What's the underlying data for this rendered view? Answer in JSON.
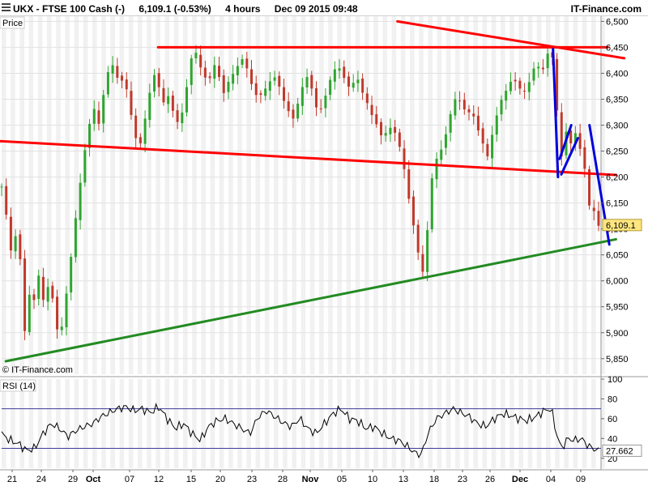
{
  "header": {
    "symbol": "UKX - FTSE 100 Cash (-)",
    "quote": "6,109.1 (-0.53%)",
    "interval": "4 hours",
    "datetime": "Dec 09 2015 09:48",
    "brand": "IT-Finance.com"
  },
  "colors": {
    "up_candle": "#2fa52f",
    "down_candle": "#c0392b",
    "red_trendline": "#ff0000",
    "blue_trendline": "#0000dd",
    "green_trendline": "#228b22",
    "rsi_line": "#000000",
    "rsi_band": "#3b3b9a",
    "price_tag_bg": "#ffe680"
  },
  "chart_data": [
    {
      "type": "candlestick",
      "panel_label": "Price",
      "watermark": "© IT-Finance.com",
      "last_price_label": "6,109.1",
      "ylim": [
        5820,
        6510
      ],
      "yticks": [
        "6,500",
        "6,450",
        "6,400",
        "6,350",
        "6,300",
        "6,250",
        "6,200",
        "6,150",
        "6,100",
        "6,050",
        "6,000",
        "5,950",
        "5,900",
        "5,850"
      ],
      "ytick_values": [
        6500,
        6450,
        6400,
        6350,
        6300,
        6250,
        6200,
        6150,
        6100,
        6050,
        6000,
        5950,
        5900,
        5850
      ],
      "x_labels": [
        "21",
        "24",
        "29",
        "Oct",
        "07",
        "12",
        "15",
        "20",
        "23",
        "28",
        "Nov",
        "05",
        "10",
        "13",
        "18",
        "23",
        "26",
        "Dec",
        "04",
        "09"
      ],
      "close_anchors": [
        {
          "t": 0,
          "v": 6180
        },
        {
          "t": 6,
          "v": 6120
        },
        {
          "t": 12,
          "v": 6050
        },
        {
          "t": 18,
          "v": 6100
        },
        {
          "t": 24,
          "v": 6020
        },
        {
          "t": 28,
          "v": 5900
        },
        {
          "t": 34,
          "v": 5980
        },
        {
          "t": 40,
          "v": 5960
        },
        {
          "t": 46,
          "v": 6020
        },
        {
          "t": 52,
          "v": 5940
        },
        {
          "t": 58,
          "v": 6020
        },
        {
          "t": 64,
          "v": 5930
        },
        {
          "t": 70,
          "v": 5880
        },
        {
          "t": 76,
          "v": 5950
        },
        {
          "t": 82,
          "v": 6020
        },
        {
          "t": 88,
          "v": 6100
        },
        {
          "t": 94,
          "v": 6180
        },
        {
          "t": 100,
          "v": 6250
        },
        {
          "t": 106,
          "v": 6300
        },
        {
          "t": 112,
          "v": 6330
        },
        {
          "t": 118,
          "v": 6300
        },
        {
          "t": 124,
          "v": 6370
        },
        {
          "t": 130,
          "v": 6410
        },
        {
          "t": 136,
          "v": 6420
        },
        {
          "t": 142,
          "v": 6380
        },
        {
          "t": 148,
          "v": 6390
        },
        {
          "t": 154,
          "v": 6340
        },
        {
          "t": 160,
          "v": 6290
        },
        {
          "t": 166,
          "v": 6250
        },
        {
          "t": 172,
          "v": 6300
        },
        {
          "t": 178,
          "v": 6360
        },
        {
          "t": 184,
          "v": 6400
        },
        {
          "t": 190,
          "v": 6370
        },
        {
          "t": 196,
          "v": 6340
        },
        {
          "t": 202,
          "v": 6360
        },
        {
          "t": 208,
          "v": 6320
        },
        {
          "t": 214,
          "v": 6300
        },
        {
          "t": 220,
          "v": 6340
        },
        {
          "t": 226,
          "v": 6400
        },
        {
          "t": 232,
          "v": 6450
        },
        {
          "t": 238,
          "v": 6420
        },
        {
          "t": 244,
          "v": 6400
        },
        {
          "t": 250,
          "v": 6380
        },
        {
          "t": 256,
          "v": 6420
        },
        {
          "t": 262,
          "v": 6400
        },
        {
          "t": 268,
          "v": 6360
        },
        {
          "t": 274,
          "v": 6380
        },
        {
          "t": 280,
          "v": 6400
        },
        {
          "t": 286,
          "v": 6420
        },
        {
          "t": 292,
          "v": 6430
        },
        {
          "t": 298,
          "v": 6400
        },
        {
          "t": 304,
          "v": 6370
        },
        {
          "t": 310,
          "v": 6350
        },
        {
          "t": 316,
          "v": 6360
        },
        {
          "t": 322,
          "v": 6380
        },
        {
          "t": 328,
          "v": 6400
        },
        {
          "t": 334,
          "v": 6380
        },
        {
          "t": 340,
          "v": 6350
        },
        {
          "t": 346,
          "v": 6330
        },
        {
          "t": 352,
          "v": 6310
        },
        {
          "t": 358,
          "v": 6340
        },
        {
          "t": 364,
          "v": 6380
        },
        {
          "t": 370,
          "v": 6400
        },
        {
          "t": 376,
          "v": 6360
        },
        {
          "t": 382,
          "v": 6320
        },
        {
          "t": 388,
          "v": 6340
        },
        {
          "t": 394,
          "v": 6370
        },
        {
          "t": 400,
          "v": 6400
        },
        {
          "t": 406,
          "v": 6420
        },
        {
          "t": 412,
          "v": 6400
        },
        {
          "t": 418,
          "v": 6370
        },
        {
          "t": 424,
          "v": 6380
        },
        {
          "t": 430,
          "v": 6390
        },
        {
          "t": 436,
          "v": 6360
        },
        {
          "t": 442,
          "v": 6340
        },
        {
          "t": 448,
          "v": 6320
        },
        {
          "t": 454,
          "v": 6300
        },
        {
          "t": 460,
          "v": 6270
        },
        {
          "t": 466,
          "v": 6290
        },
        {
          "t": 472,
          "v": 6300
        },
        {
          "t": 478,
          "v": 6270
        },
        {
          "t": 484,
          "v": 6240
        },
        {
          "t": 490,
          "v": 6180
        },
        {
          "t": 496,
          "v": 6120
        },
        {
          "t": 502,
          "v": 6060
        },
        {
          "t": 508,
          "v": 6010
        },
        {
          "t": 512,
          "v": 6060
        },
        {
          "t": 516,
          "v": 6130
        },
        {
          "t": 520,
          "v": 6200
        },
        {
          "t": 526,
          "v": 6240
        },
        {
          "t": 532,
          "v": 6260
        },
        {
          "t": 538,
          "v": 6290
        },
        {
          "t": 544,
          "v": 6330
        },
        {
          "t": 550,
          "v": 6360
        },
        {
          "t": 556,
          "v": 6340
        },
        {
          "t": 562,
          "v": 6320
        },
        {
          "t": 568,
          "v": 6330
        },
        {
          "t": 574,
          "v": 6300
        },
        {
          "t": 580,
          "v": 6270
        },
        {
          "t": 586,
          "v": 6230
        },
        {
          "t": 592,
          "v": 6280
        },
        {
          "t": 598,
          "v": 6320
        },
        {
          "t": 604,
          "v": 6350
        },
        {
          "t": 610,
          "v": 6370
        },
        {
          "t": 616,
          "v": 6390
        },
        {
          "t": 622,
          "v": 6380
        },
        {
          "t": 628,
          "v": 6360
        },
        {
          "t": 634,
          "v": 6370
        },
        {
          "t": 640,
          "v": 6400
        },
        {
          "t": 646,
          "v": 6420
        },
        {
          "t": 652,
          "v": 6400
        },
        {
          "t": 658,
          "v": 6430
        },
        {
          "t": 662,
          "v": 6450
        },
        {
          "t": 666,
          "v": 6420
        },
        {
          "t": 670,
          "v": 6350
        },
        {
          "t": 674,
          "v": 6220
        },
        {
          "t": 678,
          "v": 6260
        },
        {
          "t": 682,
          "v": 6290
        },
        {
          "t": 686,
          "v": 6260
        },
        {
          "t": 690,
          "v": 6270
        },
        {
          "t": 694,
          "v": 6290
        },
        {
          "t": 698,
          "v": 6260
        },
        {
          "t": 702,
          "v": 6230
        },
        {
          "t": 706,
          "v": 6200
        },
        {
          "t": 710,
          "v": 6140
        },
        {
          "t": 714,
          "v": 6130
        },
        {
          "t": 718,
          "v": 6150
        },
        {
          "t": 721,
          "v": 6109.1
        }
      ],
      "trendlines": [
        {
          "color": "red",
          "points": [
            {
              "t": 189,
              "v": 6450
            },
            {
              "t": 732,
              "v": 6450
            }
          ]
        },
        {
          "color": "red",
          "points": [
            {
              "t": 478,
              "v": 6500
            },
            {
              "t": 752,
              "v": 6429
            }
          ]
        },
        {
          "color": "red",
          "points": [
            {
              "t": -10,
              "v": 6270
            },
            {
              "t": 742,
              "v": 6204
            }
          ]
        },
        {
          "color": "green",
          "points": [
            {
              "t": 5,
              "v": 5845
            },
            {
              "t": 742,
              "v": 6080
            }
          ]
        },
        {
          "color": "blue",
          "points": [
            {
              "t": 666,
              "v": 6447
            },
            {
              "t": 672,
              "v": 6200
            }
          ]
        },
        {
          "color": "blue",
          "points": [
            {
              "t": 674,
              "v": 6235
            },
            {
              "t": 688,
              "v": 6300
            }
          ]
        },
        {
          "color": "blue",
          "points": [
            {
              "t": 676,
              "v": 6205
            },
            {
              "t": 696,
              "v": 6275
            }
          ]
        },
        {
          "color": "blue",
          "points": [
            {
              "t": 710,
              "v": 6300
            },
            {
              "t": 734,
              "v": 6070
            }
          ]
        }
      ]
    },
    {
      "type": "line",
      "panel_label": "RSI (14)",
      "last_value_label": "27.662",
      "ylim": [
        10,
        100
      ],
      "yticks": [
        "100",
        "80",
        "60",
        "40",
        "20"
      ],
      "ytick_values": [
        100,
        80,
        60,
        40,
        20
      ],
      "bands": [
        70,
        30
      ],
      "anchors": [
        {
          "t": 0,
          "v": 45
        },
        {
          "t": 10,
          "v": 38
        },
        {
          "t": 20,
          "v": 35
        },
        {
          "t": 30,
          "v": 28
        },
        {
          "t": 40,
          "v": 30
        },
        {
          "t": 50,
          "v": 45
        },
        {
          "t": 60,
          "v": 55
        },
        {
          "t": 70,
          "v": 50
        },
        {
          "t": 80,
          "v": 42
        },
        {
          "t": 90,
          "v": 48
        },
        {
          "t": 100,
          "v": 52
        },
        {
          "t": 110,
          "v": 55
        },
        {
          "t": 120,
          "v": 62
        },
        {
          "t": 130,
          "v": 66
        },
        {
          "t": 140,
          "v": 70
        },
        {
          "t": 150,
          "v": 72
        },
        {
          "t": 160,
          "v": 68
        },
        {
          "t": 170,
          "v": 70
        },
        {
          "t": 180,
          "v": 66
        },
        {
          "t": 190,
          "v": 72
        },
        {
          "t": 200,
          "v": 60
        },
        {
          "t": 210,
          "v": 50
        },
        {
          "t": 220,
          "v": 55
        },
        {
          "t": 230,
          "v": 45
        },
        {
          "t": 240,
          "v": 38
        },
        {
          "t": 250,
          "v": 52
        },
        {
          "t": 260,
          "v": 58
        },
        {
          "t": 270,
          "v": 60
        },
        {
          "t": 280,
          "v": 55
        },
        {
          "t": 290,
          "v": 50
        },
        {
          "t": 300,
          "v": 45
        },
        {
          "t": 310,
          "v": 62
        },
        {
          "t": 320,
          "v": 68
        },
        {
          "t": 330,
          "v": 62
        },
        {
          "t": 340,
          "v": 56
        },
        {
          "t": 350,
          "v": 52
        },
        {
          "t": 360,
          "v": 60
        },
        {
          "t": 370,
          "v": 50
        },
        {
          "t": 380,
          "v": 45
        },
        {
          "t": 390,
          "v": 55
        },
        {
          "t": 400,
          "v": 65
        },
        {
          "t": 410,
          "v": 70
        },
        {
          "t": 420,
          "v": 60
        },
        {
          "t": 430,
          "v": 58
        },
        {
          "t": 440,
          "v": 50
        },
        {
          "t": 450,
          "v": 52
        },
        {
          "t": 460,
          "v": 45
        },
        {
          "t": 470,
          "v": 40
        },
        {
          "t": 480,
          "v": 38
        },
        {
          "t": 490,
          "v": 32
        },
        {
          "t": 500,
          "v": 25
        },
        {
          "t": 507,
          "v": 24
        },
        {
          "t": 515,
          "v": 45
        },
        {
          "t": 525,
          "v": 60
        },
        {
          "t": 535,
          "v": 65
        },
        {
          "t": 545,
          "v": 70
        },
        {
          "t": 555,
          "v": 66
        },
        {
          "t": 565,
          "v": 62
        },
        {
          "t": 575,
          "v": 55
        },
        {
          "t": 585,
          "v": 52
        },
        {
          "t": 595,
          "v": 60
        },
        {
          "t": 605,
          "v": 65
        },
        {
          "t": 615,
          "v": 63
        },
        {
          "t": 625,
          "v": 60
        },
        {
          "t": 635,
          "v": 58
        },
        {
          "t": 645,
          "v": 62
        },
        {
          "t": 655,
          "v": 68
        },
        {
          "t": 664,
          "v": 70
        },
        {
          "t": 670,
          "v": 45
        },
        {
          "t": 676,
          "v": 30
        },
        {
          "t": 684,
          "v": 40
        },
        {
          "t": 692,
          "v": 38
        },
        {
          "t": 700,
          "v": 40
        },
        {
          "t": 708,
          "v": 33
        },
        {
          "t": 714,
          "v": 30
        },
        {
          "t": 721,
          "v": 27.662
        }
      ]
    }
  ]
}
